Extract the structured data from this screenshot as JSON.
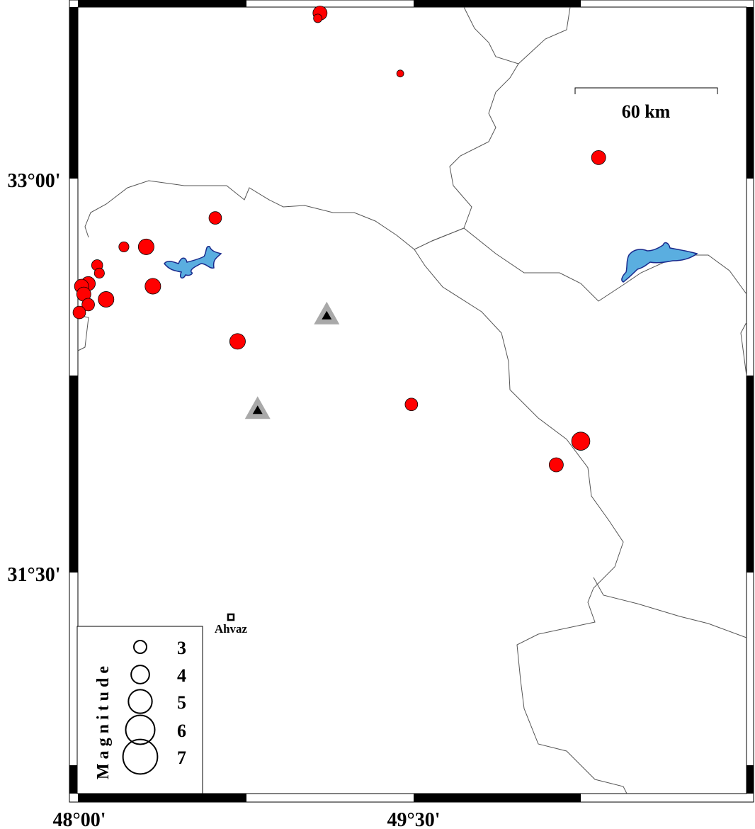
{
  "map": {
    "lon_range": [
      48.0,
      50.5
    ],
    "lat_range": [
      30.5,
      33.67
    ],
    "axis_labels": {
      "lat": [
        {
          "value": 33.0,
          "text": "33°00'"
        },
        {
          "value": 31.5,
          "text": "31°30'"
        }
      ],
      "lon": [
        {
          "value": 48.0,
          "text": "48°00'"
        },
        {
          "value": 49.5,
          "text": "49°30'"
        }
      ]
    },
    "colors": {
      "event": "#ff0000",
      "lake": "#5aaee0",
      "lake_outline": "#1a2a8c",
      "border": "#555555",
      "station_outer": "#a9a9a9",
      "station_inner": "#000000"
    },
    "scale_bar": {
      "label": "60 km"
    },
    "city": {
      "name": "Ahvaz",
      "lon": 48.68,
      "lat": 31.33
    },
    "stations": [
      {
        "lon": 49.11,
        "lat": 32.48
      },
      {
        "lon": 48.8,
        "lat": 32.12
      }
    ],
    "events": [
      {
        "lon": 49.08,
        "lat": 33.63,
        "mag": 3.0
      },
      {
        "lon": 49.07,
        "lat": 33.61,
        "mag": 1.9
      },
      {
        "lon": 49.44,
        "lat": 33.4,
        "mag": 1.6
      },
      {
        "lon": 50.33,
        "lat": 33.08,
        "mag": 3.0
      },
      {
        "lon": 48.61,
        "lat": 32.85,
        "mag": 2.7
      },
      {
        "lon": 48.2,
        "lat": 32.74,
        "mag": 2.2
      },
      {
        "lon": 48.3,
        "lat": 32.74,
        "mag": 3.3
      },
      {
        "lon": 48.08,
        "lat": 32.67,
        "mag": 2.4
      },
      {
        "lon": 48.09,
        "lat": 32.64,
        "mag": 2.2
      },
      {
        "lon": 48.04,
        "lat": 32.6,
        "mag": 3.0
      },
      {
        "lon": 48.01,
        "lat": 32.59,
        "mag": 3.0
      },
      {
        "lon": 48.02,
        "lat": 32.56,
        "mag": 3.0
      },
      {
        "lon": 48.04,
        "lat": 32.52,
        "mag": 2.7
      },
      {
        "lon": 48.0,
        "lat": 32.49,
        "mag": 2.7
      },
      {
        "lon": 48.12,
        "lat": 32.54,
        "mag": 3.3
      },
      {
        "lon": 48.33,
        "lat": 32.59,
        "mag": 3.3
      },
      {
        "lon": 48.71,
        "lat": 32.38,
        "mag": 3.3
      },
      {
        "lon": 49.49,
        "lat": 32.14,
        "mag": 2.7
      },
      {
        "lon": 50.25,
        "lat": 32.0,
        "mag": 3.8
      },
      {
        "lon": 50.14,
        "lat": 31.91,
        "mag": 3.0
      }
    ]
  },
  "legend": {
    "title": "Magnitude",
    "items": [
      {
        "mag": 3,
        "label": "3"
      },
      {
        "mag": 4,
        "label": "4"
      },
      {
        "mag": 5,
        "label": "5"
      },
      {
        "mag": 6,
        "label": "6"
      },
      {
        "mag": 7,
        "label": "7"
      }
    ]
  }
}
